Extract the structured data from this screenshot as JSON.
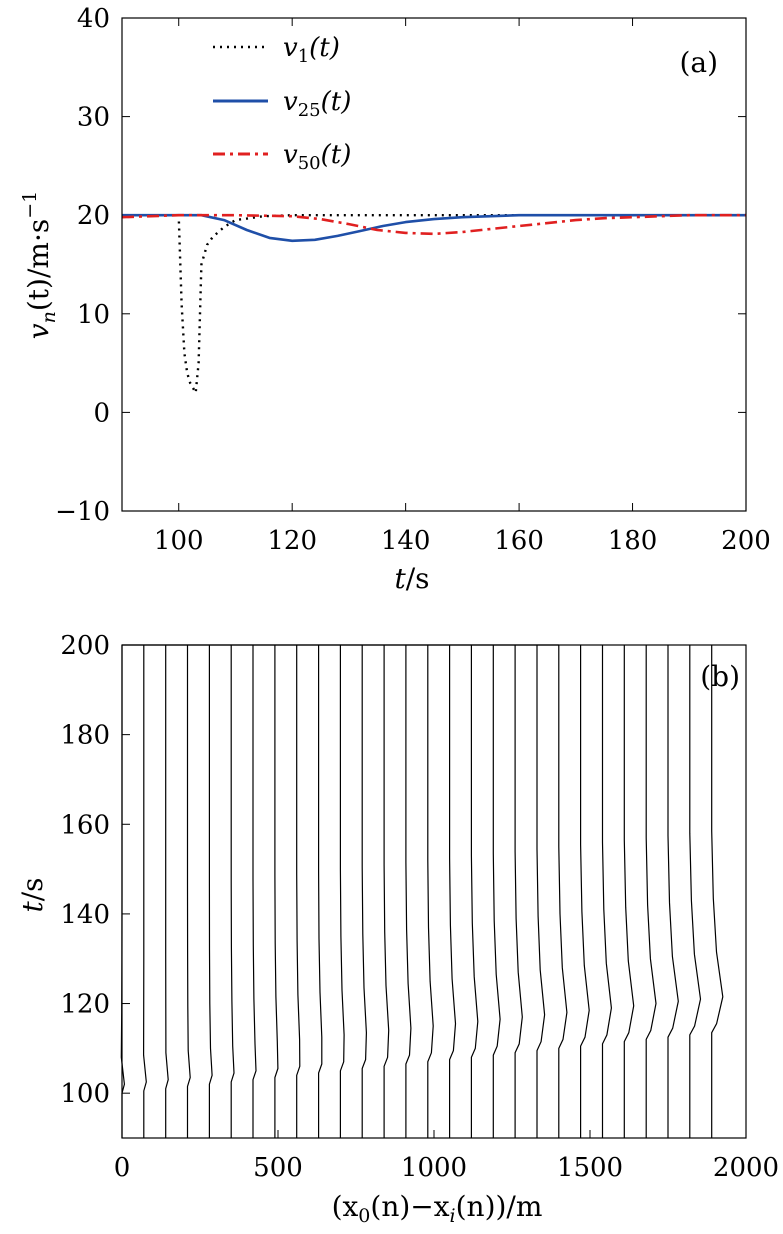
{
  "chart_data": [
    {
      "type": "line",
      "panel_label": "(a)",
      "xlabel": "t/s",
      "ylabel": "v_n(t)/m·s^-1",
      "ylabel_parts": {
        "v": "v",
        "n": "n",
        "t": "(t)/m·s",
        "exp": "−1"
      },
      "xlim": [
        90,
        200
      ],
      "ylim": [
        -10,
        40
      ],
      "xticks": [
        100,
        120,
        140,
        160,
        180,
        200
      ],
      "ytick_labels": [
        "−10",
        "0",
        "10",
        "20",
        "30",
        "40"
      ],
      "yticks": [
        -10,
        0,
        10,
        20,
        30,
        40
      ],
      "legend_position": "top-left",
      "series": [
        {
          "name": "v1(t)",
          "name_parts": {
            "base": "v",
            "sub": "1",
            "suffix": "(t)"
          },
          "style": "dotted",
          "color": "#000000",
          "x": [
            90,
            100,
            100.5,
            101,
            101.5,
            102,
            103,
            103.5,
            104,
            105,
            106,
            108,
            110,
            115,
            120,
            200
          ],
          "y": [
            20,
            20,
            11,
            6,
            4,
            3,
            2,
            5,
            15,
            17,
            17.8,
            18.8,
            19.5,
            19.9,
            20,
            20
          ]
        },
        {
          "name": "v25(t)",
          "name_parts": {
            "base": "v",
            "sub": "25",
            "suffix": "(t)"
          },
          "style": "solid",
          "color": "#1f4fa8",
          "x": [
            90,
            104,
            108,
            112,
            116,
            120,
            124,
            128,
            132,
            136,
            140,
            145,
            150,
            155,
            160,
            170,
            200
          ],
          "y": [
            20,
            20,
            19.5,
            18.5,
            17.7,
            17.4,
            17.5,
            17.9,
            18.4,
            18.9,
            19.3,
            19.6,
            19.8,
            19.9,
            20,
            20,
            20
          ]
        },
        {
          "name": "v50(t)",
          "name_parts": {
            "base": "v",
            "sub": "50",
            "suffix": "(t)"
          },
          "style": "dashdot",
          "color": "#e02020",
          "x": [
            90,
            100,
            110,
            120,
            125,
            130,
            135,
            140,
            145,
            150,
            155,
            160,
            165,
            170,
            175,
            180,
            190,
            200
          ],
          "y": [
            19.8,
            20,
            20,
            19.9,
            19.6,
            19.1,
            18.5,
            18.2,
            18.1,
            18.3,
            18.6,
            18.9,
            19.2,
            19.5,
            19.7,
            19.8,
            20,
            20
          ]
        }
      ]
    },
    {
      "type": "line",
      "panel_label": "(b)",
      "xlabel": "(x0(n)−xi(n))/m",
      "xlabel_parts": {
        "a": "(x",
        "b": "0",
        "c": "(n)−x",
        "d": "i",
        "e": "(n))/m"
      },
      "ylabel": "t/s",
      "xlim": [
        0,
        2000
      ],
      "ylim": [
        90,
        200
      ],
      "xticks": [
        0,
        500,
        1000,
        1500,
        2000
      ],
      "yticks": [
        100,
        120,
        140,
        160,
        180,
        200
      ],
      "trajectories": {
        "start_positions": [
          0,
          70,
          140,
          210,
          280,
          350,
          420,
          490,
          560,
          630,
          700,
          770,
          840,
          910,
          980,
          1050,
          1120,
          1190,
          1260,
          1330,
          1400,
          1470,
          1540,
          1610,
          1680,
          1750,
          1820,
          1890
        ],
        "shift_x": [
          -3,
          -1,
          1,
          3,
          5,
          7,
          9,
          11,
          13,
          15,
          17,
          19,
          21,
          23,
          25,
          27,
          29,
          31,
          33,
          35,
          37,
          39,
          41,
          43,
          45,
          47,
          49,
          51
        ],
        "event_t": [
          100,
          100.5,
          101,
          101.5,
          102,
          102.5,
          103,
          103.5,
          104,
          104.5,
          105,
          105.5,
          106,
          106.5,
          107,
          107.5,
          108,
          108.5,
          109,
          109.5,
          110,
          110.5,
          111,
          111.5,
          112,
          112.5,
          113,
          113.5
        ]
      }
    }
  ]
}
